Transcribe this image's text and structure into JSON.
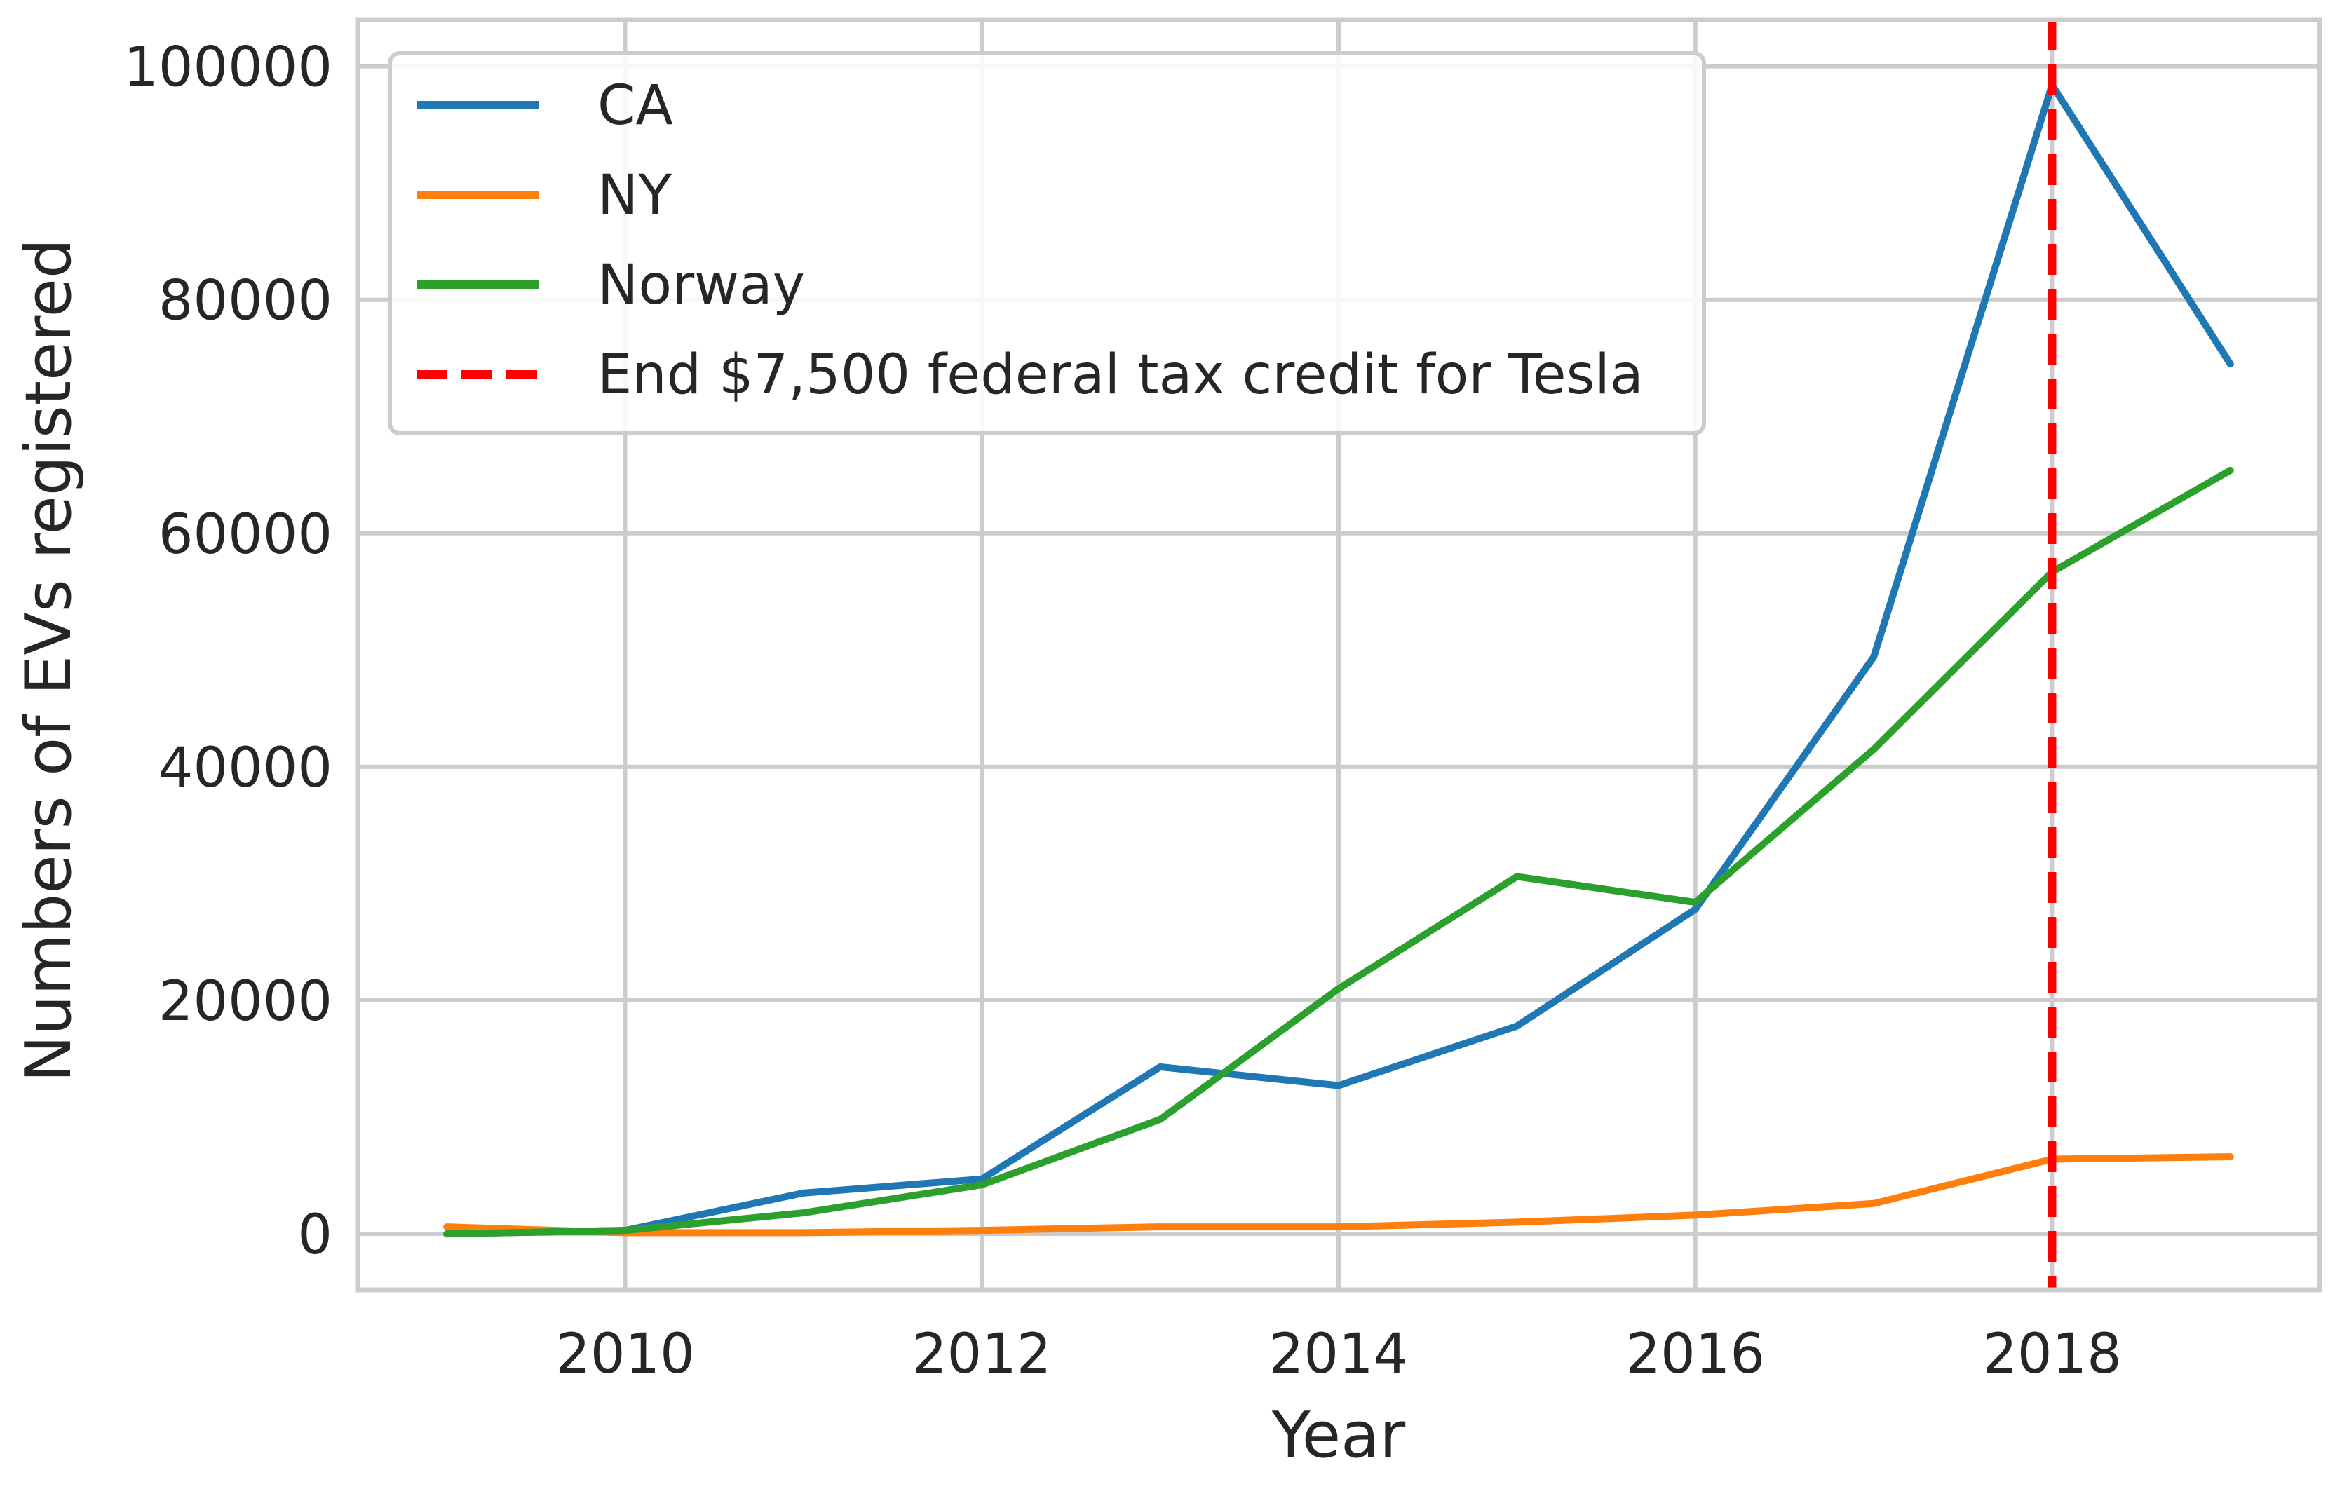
{
  "chart_data": {
    "type": "line",
    "title": "",
    "xlabel": "Year",
    "ylabel": "Numbers of EVs registered",
    "xlim": [
      2008.5,
      2019.5
    ],
    "ylim": [
      -4800,
      104000
    ],
    "x_ticks": [
      2010,
      2012,
      2014,
      2016,
      2018
    ],
    "y_ticks": [
      0,
      20000,
      40000,
      60000,
      80000,
      100000
    ],
    "x_tick_labels": [
      "2010",
      "2012",
      "2014",
      "2016",
      "2018"
    ],
    "y_tick_labels": [
      "0",
      "20000",
      "40000",
      "60000",
      "80000",
      "100000"
    ],
    "grid": true,
    "legend_position": "top-left",
    "x": [
      2009,
      2010,
      2011,
      2012,
      2013,
      2014,
      2015,
      2016,
      2017,
      2018,
      2019
    ],
    "series": [
      {
        "name": "CA",
        "color": "#1f77b4",
        "values": [
          0,
          300,
          3500,
          4700,
          14300,
          12700,
          17800,
          27800,
          49400,
          98400,
          74500
        ]
      },
      {
        "name": "NY",
        "color": "#ff7f0e",
        "values": [
          600,
          100,
          100,
          300,
          600,
          600,
          1000,
          1600,
          2600,
          6400,
          6600
        ]
      },
      {
        "name": "Norway",
        "color": "#2ca02c",
        "values": [
          0,
          300,
          1800,
          4200,
          9800,
          21000,
          30600,
          28400,
          41500,
          56700,
          65400
        ]
      }
    ],
    "annotations": [
      {
        "type": "vline",
        "x": 2018,
        "name": "End $7,500 federal tax credit for Tesla",
        "color": "#ff0000",
        "style": "dashed"
      }
    ]
  }
}
